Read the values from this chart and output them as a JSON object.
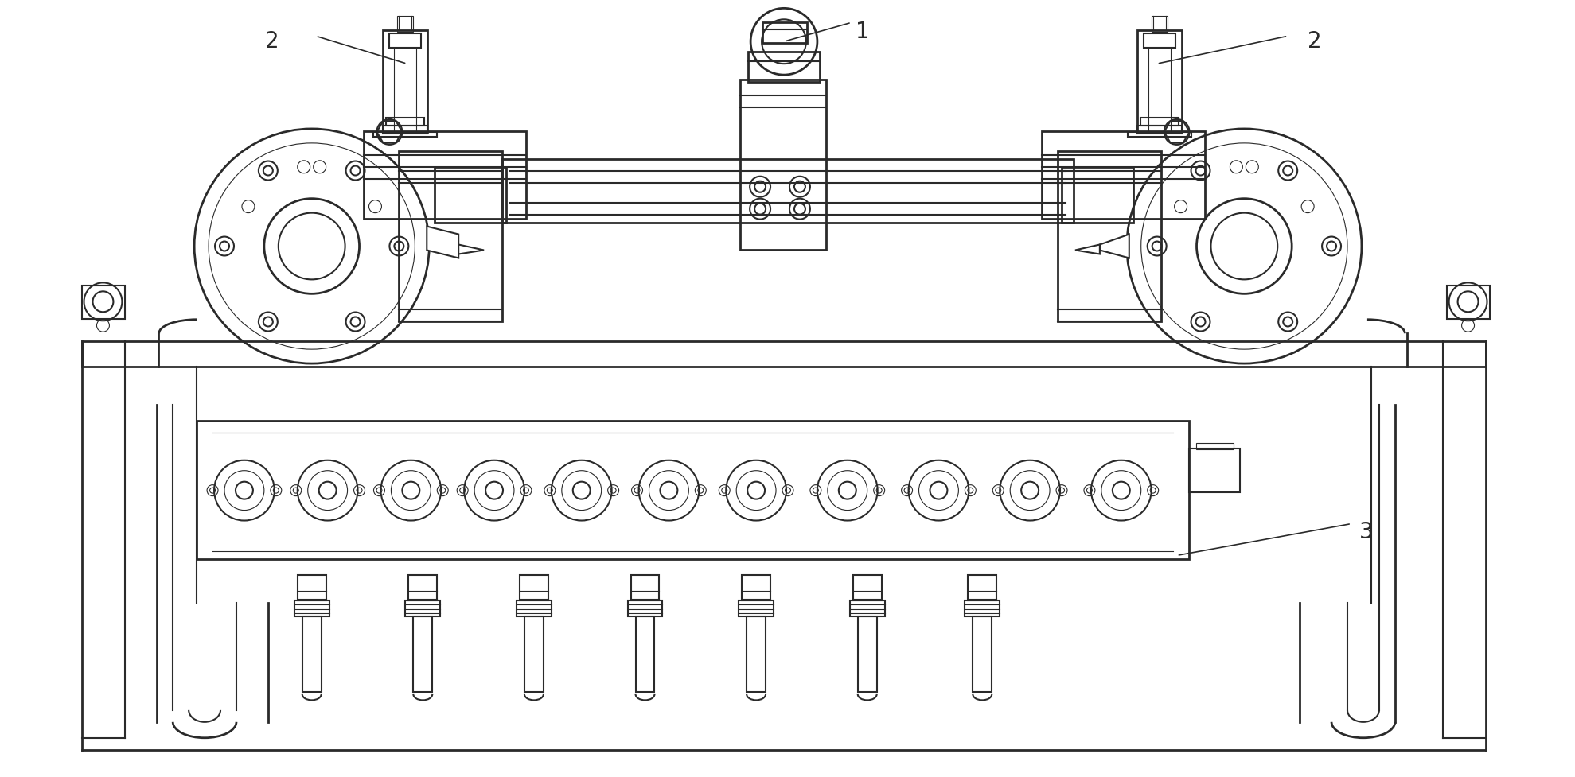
{
  "bg_color": "#ffffff",
  "line_color": "#2a2a2a",
  "lw_main": 1.5,
  "lw_thin": 0.8,
  "lw_thick": 2.0,
  "fig_width": 19.79,
  "fig_height": 9.78
}
